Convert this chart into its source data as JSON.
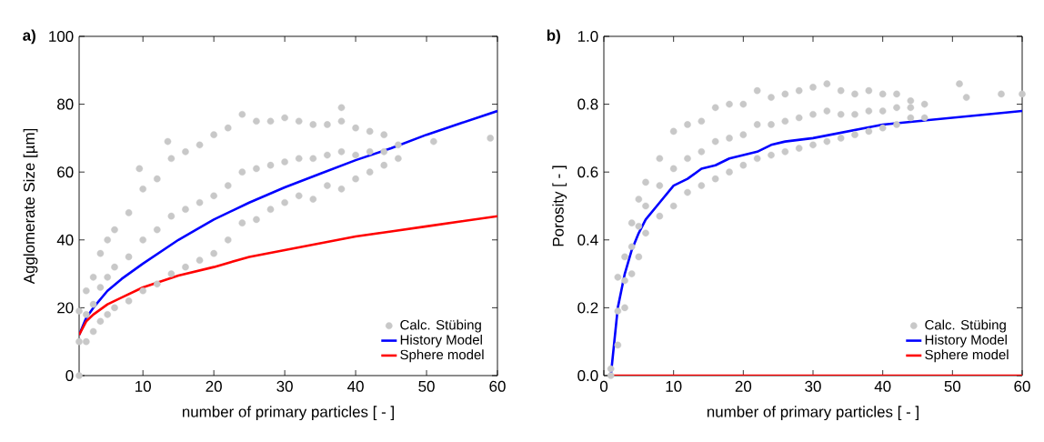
{
  "chart_data": [
    {
      "type": "scatter",
      "title": "a)",
      "xlabel": "number of primary particles [ - ]",
      "ylabel": "Agglomerate Size [µm]",
      "xlim": [
        1,
        60
      ],
      "ylim": [
        0,
        100
      ],
      "xticks": [
        10,
        20,
        30,
        40,
        50,
        60
      ],
      "yticks": [
        0,
        20,
        40,
        60,
        80,
        100
      ],
      "legend": "bottom right",
      "series": [
        {
          "name": "Calc. Stübing",
          "marker": "circle",
          "color": "#c8c8c8",
          "x": [
            1,
            1,
            1,
            2,
            2,
            2,
            3,
            3,
            3,
            4,
            4,
            4,
            5,
            5,
            5,
            6,
            6,
            6,
            8,
            8,
            8,
            10,
            10,
            10,
            12,
            12,
            12,
            14,
            14,
            14,
            16,
            16,
            16,
            18,
            18,
            18,
            20,
            20,
            20,
            22,
            22,
            22,
            24,
            24,
            24,
            26,
            26,
            26,
            28,
            28,
            28,
            30,
            30,
            30,
            32,
            32,
            32,
            34,
            34,
            34,
            36,
            36,
            36,
            38,
            38,
            38,
            40,
            40,
            40,
            42,
            42,
            42,
            44,
            44,
            44,
            46,
            46,
            9.5,
            13.5,
            38,
            51,
            59
          ],
          "values": [
            0,
            10,
            19,
            10,
            18,
            25,
            13,
            21,
            29,
            16,
            26,
            36,
            18,
            29,
            40,
            20,
            32,
            43,
            22,
            35,
            48,
            25,
            40,
            55,
            27,
            43,
            58,
            30,
            47,
            64,
            32,
            49,
            66,
            34,
            51,
            68,
            36,
            53,
            71,
            40,
            56,
            73,
            45,
            60,
            77,
            46,
            61,
            75,
            49,
            62,
            75,
            51,
            63,
            76,
            53,
            64,
            75,
            52,
            64,
            74,
            56,
            65,
            74,
            55,
            66,
            75,
            58,
            65,
            73,
            60,
            66,
            72,
            62,
            66,
            71,
            64,
            68,
            61,
            69,
            79,
            69,
            70
          ]
        },
        {
          "name": "History Model",
          "type": "line",
          "marker": "none",
          "color": "#0000ff",
          "x": [
            1,
            2,
            3,
            5,
            7,
            10,
            15,
            20,
            25,
            30,
            35,
            40,
            45,
            50,
            55,
            60
          ],
          "values": [
            12,
            17,
            20,
            25,
            28.5,
            33,
            40,
            46,
            51,
            55.5,
            59.5,
            63.5,
            67,
            71,
            74.5,
            78
          ]
        },
        {
          "name": "Sphere model",
          "type": "line",
          "marker": "none",
          "color": "#ff0000",
          "x": [
            1,
            2,
            3,
            5,
            7,
            10,
            15,
            20,
            25,
            30,
            35,
            40,
            45,
            50,
            55,
            60
          ],
          "values": [
            12,
            16,
            18,
            21,
            23,
            26,
            29.5,
            32,
            35,
            37,
            39,
            41,
            42.5,
            44,
            45.5,
            47
          ]
        }
      ]
    },
    {
      "type": "scatter",
      "title": "b)",
      "xlabel": "number of primary particles [ - ]",
      "ylabel": "Porosity [ - ]",
      "xlim": [
        0,
        60
      ],
      "ylim": [
        0,
        1
      ],
      "xticks": [
        0,
        10,
        20,
        30,
        40,
        50,
        60
      ],
      "yticks": [
        {
          "value": 0,
          "label": "0.0"
        },
        {
          "value": 0.2,
          "label": "0.2"
        },
        {
          "value": 0.4,
          "label": "0.4"
        },
        {
          "value": 0.6,
          "label": "0.6"
        },
        {
          "value": 0.8,
          "label": "0.8"
        },
        {
          "value": 1,
          "label": "1.0"
        }
      ],
      "legend": "bottom right",
      "series": [
        {
          "name": "Calc. Stübing",
          "marker": "circle",
          "color": "#c8c8c8",
          "x": [
            1,
            1,
            2,
            2,
            2,
            3,
            3,
            3,
            4,
            4,
            4,
            5,
            5,
            5,
            6,
            6,
            6,
            8,
            8,
            8,
            10,
            10,
            10,
            12,
            12,
            12,
            14,
            14,
            14,
            16,
            16,
            16,
            18,
            18,
            18,
            20,
            20,
            20,
            22,
            22,
            22,
            24,
            24,
            24,
            26,
            26,
            26,
            28,
            28,
            28,
            30,
            30,
            30,
            32,
            32,
            32,
            34,
            34,
            34,
            36,
            36,
            36,
            38,
            38,
            38,
            40,
            40,
            40,
            42,
            42,
            42,
            44,
            44,
            44,
            46,
            46,
            51,
            52,
            57,
            60
          ],
          "values": [
            0,
            0.02,
            0.09,
            0.19,
            0.29,
            0.2,
            0.28,
            0.35,
            0.3,
            0.38,
            0.45,
            0.35,
            0.44,
            0.52,
            0.42,
            0.5,
            0.57,
            0.47,
            0.56,
            0.64,
            0.5,
            0.61,
            0.72,
            0.54,
            0.64,
            0.74,
            0.56,
            0.66,
            0.75,
            0.58,
            0.69,
            0.79,
            0.6,
            0.7,
            0.8,
            0.62,
            0.71,
            0.8,
            0.64,
            0.74,
            0.84,
            0.65,
            0.74,
            0.82,
            0.66,
            0.75,
            0.83,
            0.67,
            0.76,
            0.84,
            0.68,
            0.77,
            0.85,
            0.69,
            0.78,
            0.86,
            0.7,
            0.77,
            0.84,
            0.71,
            0.77,
            0.83,
            0.72,
            0.78,
            0.84,
            0.73,
            0.78,
            0.83,
            0.74,
            0.79,
            0.83,
            0.76,
            0.79,
            0.81,
            0.76,
            0.8,
            0.86,
            0.82,
            0.83,
            0.83
          ]
        },
        {
          "name": "History Model",
          "type": "line",
          "marker": "none",
          "color": "#0000ff",
          "x": [
            1,
            2,
            3,
            4,
            5,
            6,
            8,
            10,
            12,
            14,
            16,
            18,
            20,
            22,
            24,
            26,
            30,
            35,
            40,
            45,
            50,
            55,
            60
          ],
          "values": [
            0,
            0.2,
            0.3,
            0.37,
            0.42,
            0.46,
            0.51,
            0.56,
            0.58,
            0.61,
            0.62,
            0.64,
            0.65,
            0.66,
            0.68,
            0.69,
            0.7,
            0.72,
            0.74,
            0.75,
            0.76,
            0.77,
            0.78
          ]
        },
        {
          "name": "Sphere model",
          "type": "line",
          "marker": "none",
          "color": "#ff0000",
          "x": [
            1,
            60
          ],
          "values": [
            0,
            0
          ]
        }
      ]
    }
  ]
}
